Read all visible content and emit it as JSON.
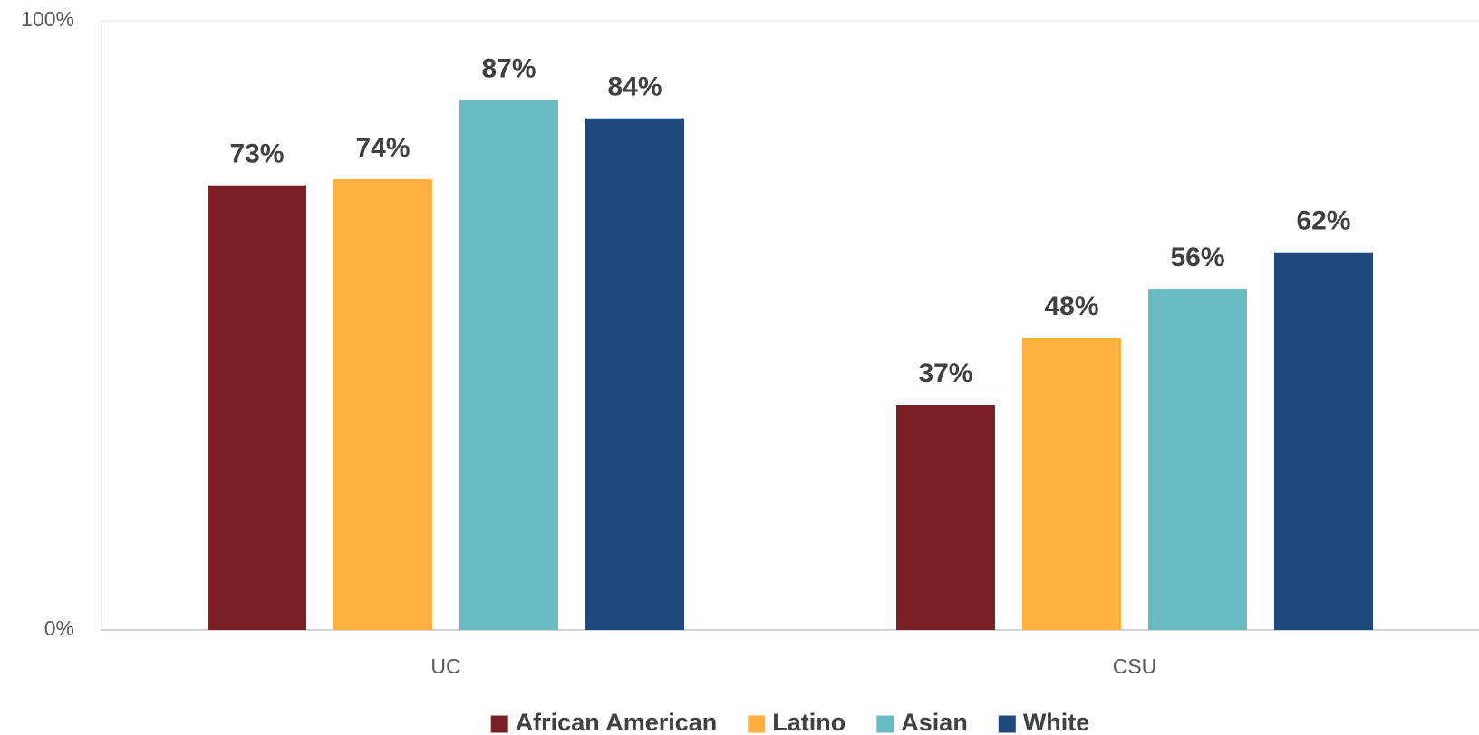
{
  "chart_data": {
    "type": "bar",
    "categories": [
      "UC",
      "CSU"
    ],
    "series": [
      {
        "name": "African American",
        "color": "#7a1f24",
        "values": [
          73,
          37
        ],
        "value_labels": [
          "73%",
          "37%"
        ]
      },
      {
        "name": "Latino",
        "color": "#fbb040",
        "values": [
          74,
          48
        ],
        "value_labels": [
          "74%",
          "48%"
        ]
      },
      {
        "name": "Asian",
        "color": "#68bac2",
        "values": [
          87,
          56
        ],
        "value_labels": [
          "87%",
          "56%"
        ]
      },
      {
        "name": "White",
        "color": "#1f497d",
        "values": [
          84,
          62
        ],
        "value_labels": [
          "84%",
          "62%"
        ]
      }
    ],
    "ylim": [
      0,
      100
    ],
    "yticks": [
      {
        "value": 0,
        "label": "0%"
      },
      {
        "value": 100,
        "label": "100%"
      }
    ],
    "grid": true,
    "legend": "bottom"
  }
}
